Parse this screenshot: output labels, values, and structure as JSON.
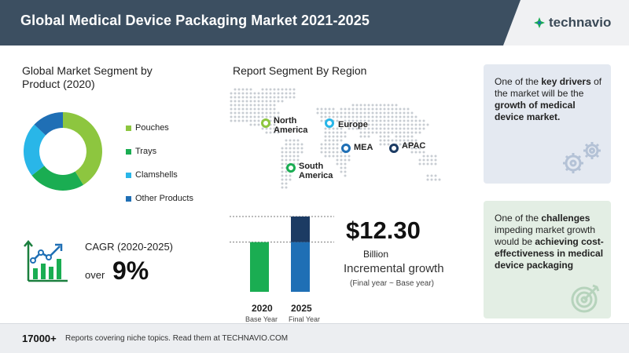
{
  "header": {
    "title": "Global Medical Device Packaging Market 2021-2025",
    "logo": "technavio",
    "logo_icon": "technavio-leaf-icon"
  },
  "segment": {
    "title": "Global Market Segment by Product (2020)",
    "legend": [
      {
        "label": "Pouches",
        "color": "#8dc63f"
      },
      {
        "label": "Trays",
        "color": "#1aad52"
      },
      {
        "label": "Clamshells",
        "color": "#29b6e8"
      },
      {
        "label": "Other Products",
        "color": "#1f6fb5"
      }
    ]
  },
  "cagr": {
    "label": "CAGR (2020-2025)",
    "over": "over",
    "value": "9%",
    "icon": "growth-chart-icon"
  },
  "region": {
    "title": "Report Segment By Region",
    "regions": [
      {
        "label": "North America",
        "color": "#8dc63f"
      },
      {
        "label": "Europe",
        "color": "#29b6e8"
      },
      {
        "label": "MEA",
        "color": "#1f6fb5"
      },
      {
        "label": "APAC",
        "color": "#1c3b63"
      },
      {
        "label": "South America",
        "color": "#1aad52"
      }
    ]
  },
  "growth": {
    "value": "$12.30",
    "unit": "Billion",
    "label": "Incremental growth",
    "note": "(Final year ~ Base year)"
  },
  "chart_data": {
    "type": "bar",
    "categories": [
      "2020",
      "2025"
    ],
    "category_sublabels": [
      "Base Year",
      "Final Year"
    ],
    "base_year_fraction": 0.66,
    "increment_fraction": 0.34,
    "colors": {
      "base": "#1aad52",
      "final_base": "#1f6fb5",
      "increment": "#1c3b63"
    }
  },
  "cards": {
    "driver": {
      "pre": "One of the ",
      "bold1": "key drivers",
      "mid": " of the market will be the ",
      "bold2": "growth of medical device market.",
      "icon": "gears-icon"
    },
    "challenge": {
      "pre": "One of the ",
      "bold1": "challenges",
      "mid": " impeding market growth would be ",
      "bold2": "achieving cost-effectiveness in medical device packaging",
      "icon": "target-icon"
    }
  },
  "footer": {
    "count": "17000+",
    "text": "Reports covering niche topics. Read them at TECHNAVIO.COM"
  }
}
